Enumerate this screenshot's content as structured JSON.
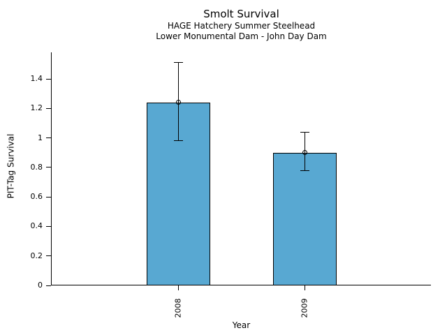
{
  "header": {
    "title": "Smolt Survival",
    "subtitle1": "HAGE Hatchery Summer Steelhead",
    "subtitle2": "Lower Monumental Dam - John Day Dam"
  },
  "axes": {
    "ylabel": "PIT-Tag Survival",
    "xlabel": "Year"
  },
  "chart_data": {
    "type": "bar",
    "title": "Smolt Survival",
    "subtitle": [
      "HAGE Hatchery Summer Steelhead",
      "Lower Monumental Dam - John Day Dam"
    ],
    "categories": [
      "2008",
      "2009"
    ],
    "values": [
      1.24,
      0.9
    ],
    "error_bars": [
      {
        "low": 0.98,
        "high": 1.51
      },
      {
        "low": 0.78,
        "high": 1.04
      }
    ],
    "xlabel": "Year",
    "ylabel": "PIT-Tag Survival",
    "yticks": [
      0,
      0.2,
      0.4,
      0.6,
      0.8,
      1,
      1.2,
      1.4
    ],
    "ytick_labels": [
      "0",
      "0.2",
      "0.4",
      "0.6",
      "0.8",
      "1",
      "1.2",
      "1.4"
    ],
    "ylim": [
      0,
      1.58
    ],
    "x_tick_label_rotation": 90,
    "marker": "open-circle",
    "grid": false,
    "legend": false,
    "bar_color": "#58A8D2",
    "bar_border_color": "#000000",
    "axis_color": "#000000",
    "background": "#FFFFFF"
  }
}
